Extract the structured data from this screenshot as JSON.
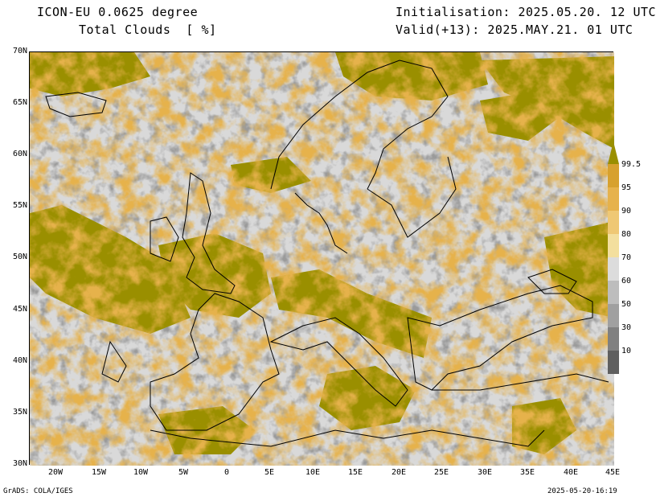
{
  "header": {
    "model": "ICON-EU 0.0625 degree",
    "variable": "Total Clouds  [ %]",
    "init": "Initialisation: 2025.05.20. 12 UTC",
    "valid": "Valid(+13): 2025.MAY.21. 01 UTC"
  },
  "footer": {
    "credit": "GrADS: COLA/IGES",
    "timestamp": "2025-05-20-16:19"
  },
  "map": {
    "lat_labels": [
      "70N",
      "65N",
      "60N",
      "55N",
      "50N",
      "45N",
      "40N",
      "35N",
      "30N"
    ],
    "lon_labels": [
      "20W",
      "15W",
      "10W",
      "5W",
      "0",
      "5E",
      "10E",
      "15E",
      "20E",
      "25E",
      "30E",
      "35E",
      "40E",
      "45E"
    ]
  },
  "colorbar": {
    "labels": [
      "99.5",
      "95",
      "90",
      "80",
      "70",
      "60",
      "50",
      "30",
      "10"
    ],
    "colors": [
      "#d7a12e",
      "#e6b24c",
      "#efc874",
      "#f3df9e",
      "#dcdcdc",
      "#bdbdbd",
      "#a0a0a0",
      "#808080",
      "#5f5f5f"
    ],
    "cap_color": "#9a8f00"
  },
  "colors": {
    "overcast": "#9a8f00",
    "clear": "#d9d9d9"
  }
}
